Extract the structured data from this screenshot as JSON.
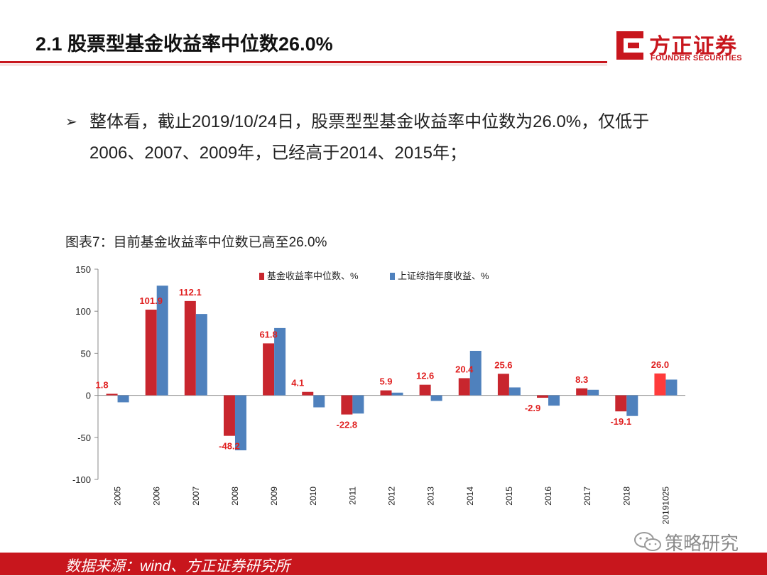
{
  "header": {
    "title": "2.1 股票型基金收益率中位数26.0%",
    "logo_name": "方正证券",
    "logo_sub": "FOUNDER SECURITIES"
  },
  "bullet": {
    "line1": "整体看，截止2019/10/24日，股票型型基金收益率中位数为26.0%，仅低于",
    "line2": "2006、2007、2009年，已经高于2014、2015年；"
  },
  "chart_caption": "图表7：目前基金收益率中位数已高至26.0%",
  "chart_data": {
    "type": "bar",
    "categories": [
      "2005",
      "2006",
      "2007",
      "2008",
      "2009",
      "2010",
      "2011",
      "2012",
      "2013",
      "2014",
      "2015",
      "2016",
      "2017",
      "2018",
      "20191025"
    ],
    "series": [
      {
        "name": "基金收益率中位数、%",
        "color": "#c8262e",
        "values": [
          1.8,
          101.9,
          112.1,
          -48.2,
          61.8,
          4.1,
          -22.8,
          5.9,
          12.6,
          20.4,
          25.6,
          -2.9,
          8.3,
          -19.1,
          26.0
        ],
        "labels": [
          "1.8",
          "101.9",
          "112.1",
          "-48.2",
          "61.8",
          "4.1",
          "-22.8",
          "5.9",
          "12.6",
          "20.4",
          "25.6",
          "-2.9",
          "8.3",
          "-19.1",
          "26.0"
        ]
      },
      {
        "name": "上证综指年度收益、%",
        "color": "#4f81bd",
        "values": [
          -8.3,
          130.4,
          96.7,
          -65.4,
          80.0,
          -14.3,
          -21.7,
          3.2,
          -6.7,
          52.9,
          9.4,
          -12.3,
          6.6,
          -24.6,
          18.7
        ]
      }
    ],
    "highlight_color": "#ff3b3b",
    "yticks": [
      "150",
      "100",
      "50",
      "0",
      "-50",
      "-100"
    ],
    "ylim": [
      -100,
      150
    ],
    "legend": "top-center",
    "grid": false
  },
  "footer": {
    "source": "数据来源：wind、方正证券研究所"
  },
  "watermark": {
    "text": "策略研究",
    "icon": "wechat-icon"
  }
}
